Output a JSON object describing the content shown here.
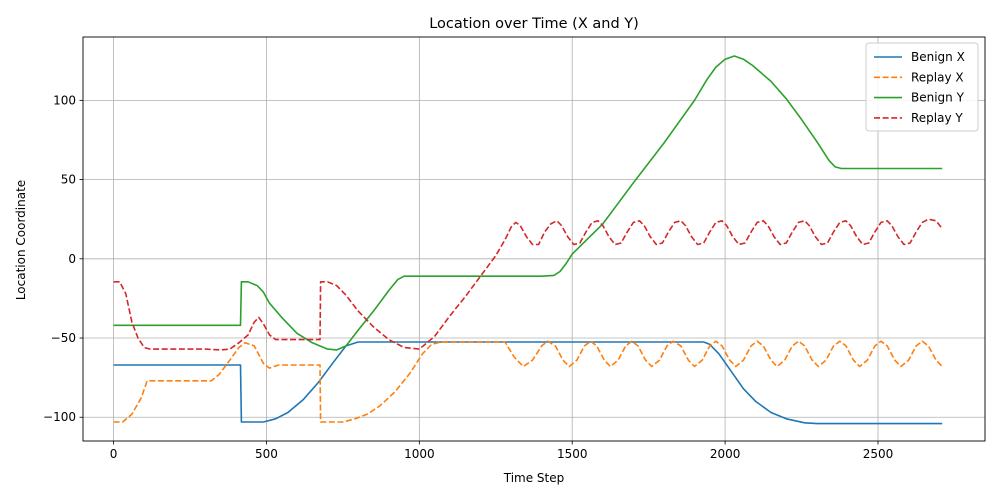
{
  "chart_data": {
    "type": "line",
    "title": "Location over Time (X and Y)",
    "xlabel": "Time Step",
    "ylabel": "Location Coordinate",
    "xlim": [
      -100,
      2850
    ],
    "ylim": [
      -115,
      140
    ],
    "xticks": [
      0,
      500,
      1000,
      1500,
      2000,
      2500
    ],
    "yticks": [
      -100,
      -50,
      0,
      50,
      100
    ],
    "grid": true,
    "legend_position": "top-right",
    "series": [
      {
        "name": "Benign X",
        "color": "#1f77b4",
        "dash": "solid",
        "points": [
          [
            0,
            -67
          ],
          [
            415,
            -67
          ],
          [
            418,
            -103
          ],
          [
            490,
            -103
          ],
          [
            530,
            -101
          ],
          [
            570,
            -97
          ],
          [
            620,
            -89
          ],
          [
            670,
            -78
          ],
          [
            720,
            -65
          ],
          [
            760,
            -55
          ],
          [
            800,
            -52.5
          ],
          [
            1000,
            -52.5
          ],
          [
            1500,
            -52.5
          ],
          [
            1930,
            -52.5
          ],
          [
            1950,
            -54
          ],
          [
            1980,
            -60
          ],
          [
            2020,
            -71
          ],
          [
            2060,
            -82
          ],
          [
            2100,
            -90
          ],
          [
            2150,
            -97
          ],
          [
            2200,
            -101
          ],
          [
            2260,
            -103.5
          ],
          [
            2300,
            -104
          ],
          [
            2710,
            -104
          ]
        ]
      },
      {
        "name": "Replay X",
        "color": "#ff7f0e",
        "dash": "dashed",
        "points": [
          [
            0,
            -103
          ],
          [
            30,
            -103
          ],
          [
            60,
            -98
          ],
          [
            90,
            -88
          ],
          [
            110,
            -77
          ],
          [
            320,
            -77
          ],
          [
            345,
            -73
          ],
          [
            380,
            -64
          ],
          [
            410,
            -56
          ],
          [
            430,
            -53
          ],
          [
            460,
            -55
          ],
          [
            490,
            -66
          ],
          [
            510,
            -69
          ],
          [
            540,
            -67
          ],
          [
            675,
            -67
          ],
          [
            677,
            -103
          ],
          [
            750,
            -103
          ],
          [
            790,
            -101
          ],
          [
            830,
            -98
          ],
          [
            870,
            -93
          ],
          [
            920,
            -84
          ],
          [
            970,
            -72
          ],
          [
            1010,
            -60
          ],
          [
            1040,
            -54
          ],
          [
            1070,
            -52.5
          ],
          [
            1280,
            -52.5
          ],
          [
            1310,
            -62
          ],
          [
            1340,
            -68
          ],
          [
            1370,
            -64
          ],
          [
            1400,
            -55
          ],
          [
            1420,
            -52
          ],
          [
            1445,
            -55
          ],
          [
            1470,
            -64
          ],
          [
            1490,
            -68
          ],
          [
            1515,
            -64
          ],
          [
            1540,
            -55
          ],
          [
            1560,
            -52
          ],
          [
            1580,
            -55
          ],
          [
            1605,
            -64
          ],
          [
            1625,
            -68
          ],
          [
            1650,
            -64
          ],
          [
            1675,
            -55
          ],
          [
            1695,
            -52
          ],
          [
            1715,
            -55
          ],
          [
            1740,
            -64
          ],
          [
            1760,
            -68
          ],
          [
            1785,
            -64
          ],
          [
            1810,
            -55
          ],
          [
            1830,
            -52
          ],
          [
            1855,
            -55
          ],
          [
            1880,
            -64
          ],
          [
            1900,
            -68
          ],
          [
            1925,
            -64
          ],
          [
            1950,
            -55
          ],
          [
            1970,
            -52
          ],
          [
            1990,
            -55
          ],
          [
            2015,
            -64
          ],
          [
            2035,
            -68
          ],
          [
            2060,
            -64
          ],
          [
            2085,
            -55
          ],
          [
            2105,
            -52
          ],
          [
            2125,
            -55
          ],
          [
            2150,
            -64
          ],
          [
            2170,
            -68
          ],
          [
            2195,
            -64
          ],
          [
            2220,
            -55
          ],
          [
            2240,
            -52
          ],
          [
            2260,
            -55
          ],
          [
            2285,
            -64
          ],
          [
            2305,
            -68
          ],
          [
            2330,
            -64
          ],
          [
            2355,
            -55
          ],
          [
            2375,
            -52
          ],
          [
            2395,
            -55
          ],
          [
            2420,
            -64
          ],
          [
            2440,
            -68
          ],
          [
            2465,
            -64
          ],
          [
            2490,
            -55
          ],
          [
            2510,
            -52
          ],
          [
            2530,
            -55
          ],
          [
            2555,
            -64
          ],
          [
            2575,
            -68
          ],
          [
            2600,
            -64
          ],
          [
            2625,
            -55
          ],
          [
            2645,
            -52
          ],
          [
            2665,
            -55
          ],
          [
            2690,
            -64
          ],
          [
            2710,
            -68
          ]
        ]
      },
      {
        "name": "Benign Y",
        "color": "#2ca02c",
        "dash": "solid",
        "points": [
          [
            0,
            -42
          ],
          [
            415,
            -42
          ],
          [
            418,
            -14.5
          ],
          [
            440,
            -14.5
          ],
          [
            470,
            -17
          ],
          [
            490,
            -21
          ],
          [
            510,
            -28
          ],
          [
            550,
            -37
          ],
          [
            600,
            -47
          ],
          [
            650,
            -53
          ],
          [
            700,
            -57
          ],
          [
            730,
            -57.5
          ],
          [
            760,
            -55
          ],
          [
            800,
            -45
          ],
          [
            850,
            -33
          ],
          [
            900,
            -20
          ],
          [
            930,
            -13
          ],
          [
            950,
            -11
          ],
          [
            1000,
            -11
          ],
          [
            1400,
            -11
          ],
          [
            1440,
            -10.5
          ],
          [
            1460,
            -8
          ],
          [
            1480,
            -3
          ],
          [
            1500,
            3
          ],
          [
            1600,
            22
          ],
          [
            1700,
            48
          ],
          [
            1800,
            73
          ],
          [
            1900,
            100
          ],
          [
            1940,
            113
          ],
          [
            1970,
            121
          ],
          [
            2000,
            126
          ],
          [
            2030,
            128
          ],
          [
            2060,
            126
          ],
          [
            2090,
            122
          ],
          [
            2150,
            112
          ],
          [
            2200,
            101
          ],
          [
            2250,
            88
          ],
          [
            2300,
            74
          ],
          [
            2340,
            62
          ],
          [
            2360,
            58
          ],
          [
            2380,
            57
          ],
          [
            2710,
            57
          ]
        ]
      },
      {
        "name": "Replay Y",
        "color": "#d62728",
        "dash": "dashed",
        "points": [
          [
            0,
            -14.5
          ],
          [
            20,
            -14.5
          ],
          [
            40,
            -22
          ],
          [
            60,
            -40
          ],
          [
            80,
            -50
          ],
          [
            100,
            -56
          ],
          [
            120,
            -57
          ],
          [
            300,
            -57
          ],
          [
            350,
            -57.5
          ],
          [
            380,
            -57
          ],
          [
            410,
            -53
          ],
          [
            440,
            -48
          ],
          [
            460,
            -40
          ],
          [
            475,
            -37
          ],
          [
            490,
            -41
          ],
          [
            510,
            -48
          ],
          [
            530,
            -51
          ],
          [
            675,
            -51
          ],
          [
            677,
            -14.5
          ],
          [
            700,
            -14.5
          ],
          [
            730,
            -17
          ],
          [
            760,
            -23
          ],
          [
            800,
            -33
          ],
          [
            850,
            -43
          ],
          [
            900,
            -51
          ],
          [
            950,
            -56
          ],
          [
            1000,
            -57
          ],
          [
            1050,
            -49
          ],
          [
            1100,
            -36
          ],
          [
            1150,
            -24
          ],
          [
            1200,
            -11
          ],
          [
            1250,
            2
          ],
          [
            1280,
            12
          ],
          [
            1300,
            20
          ],
          [
            1315,
            23
          ],
          [
            1330,
            21
          ],
          [
            1350,
            14
          ],
          [
            1370,
            9
          ],
          [
            1390,
            9
          ],
          [
            1410,
            17
          ],
          [
            1430,
            22
          ],
          [
            1450,
            24
          ],
          [
            1465,
            21
          ],
          [
            1485,
            14
          ],
          [
            1505,
            9
          ],
          [
            1525,
            10
          ],
          [
            1545,
            17
          ],
          [
            1565,
            23
          ],
          [
            1585,
            24
          ],
          [
            1600,
            21
          ],
          [
            1620,
            14
          ],
          [
            1640,
            9
          ],
          [
            1660,
            10
          ],
          [
            1680,
            17
          ],
          [
            1700,
            23
          ],
          [
            1720,
            24
          ],
          [
            1735,
            21
          ],
          [
            1755,
            14
          ],
          [
            1775,
            9
          ],
          [
            1795,
            10
          ],
          [
            1815,
            17
          ],
          [
            1835,
            23
          ],
          [
            1855,
            24
          ],
          [
            1870,
            21
          ],
          [
            1890,
            14
          ],
          [
            1910,
            9
          ],
          [
            1930,
            10
          ],
          [
            1950,
            17
          ],
          [
            1970,
            23
          ],
          [
            1990,
            24
          ],
          [
            2005,
            21
          ],
          [
            2025,
            14
          ],
          [
            2045,
            9
          ],
          [
            2065,
            10
          ],
          [
            2085,
            17
          ],
          [
            2105,
            23
          ],
          [
            2125,
            24
          ],
          [
            2140,
            21
          ],
          [
            2160,
            14
          ],
          [
            2180,
            9
          ],
          [
            2200,
            10
          ],
          [
            2220,
            17
          ],
          [
            2240,
            23
          ],
          [
            2260,
            24
          ],
          [
            2275,
            21
          ],
          [
            2295,
            14
          ],
          [
            2315,
            9
          ],
          [
            2335,
            10
          ],
          [
            2355,
            17
          ],
          [
            2375,
            23
          ],
          [
            2395,
            24
          ],
          [
            2410,
            21
          ],
          [
            2430,
            14
          ],
          [
            2450,
            9
          ],
          [
            2470,
            10
          ],
          [
            2490,
            17
          ],
          [
            2510,
            23
          ],
          [
            2530,
            24
          ],
          [
            2545,
            21
          ],
          [
            2565,
            14
          ],
          [
            2585,
            9
          ],
          [
            2605,
            10
          ],
          [
            2625,
            17
          ],
          [
            2645,
            23
          ],
          [
            2665,
            25
          ],
          [
            2690,
            24
          ],
          [
            2710,
            19
          ]
        ]
      }
    ]
  }
}
